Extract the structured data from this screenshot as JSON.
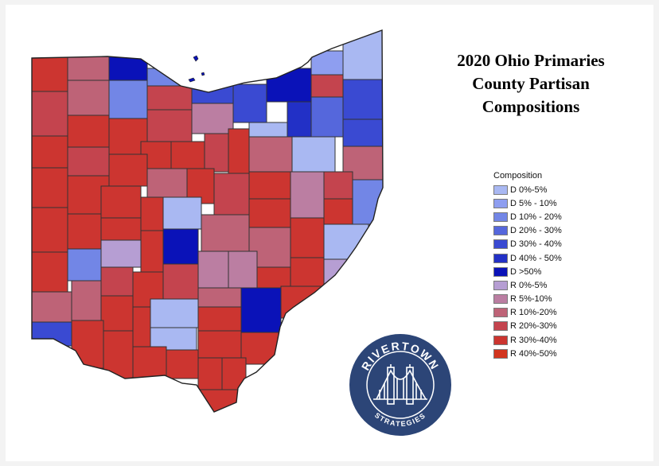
{
  "title_lines": [
    "2020 Ohio Primaries",
    "County Partisan",
    "Compositions"
  ],
  "legend": {
    "heading": "Composition",
    "items": [
      {
        "label": "D 0%-5%",
        "color": "#a9b8f2"
      },
      {
        "label": "D 5% - 10%",
        "color": "#8e9ef0"
      },
      {
        "label": "D 10% - 20%",
        "color": "#7286e6"
      },
      {
        "label": "D 20% - 30%",
        "color": "#5567dc"
      },
      {
        "label": "D 30% - 40%",
        "color": "#3a4ad2"
      },
      {
        "label": "D 40% - 50%",
        "color": "#2230c6"
      },
      {
        "label": "D >50%",
        "color": "#0a12b8"
      },
      {
        "label": "R 0%-5%",
        "color": "#b69ed3"
      },
      {
        "label": "R 5%-10%",
        "color": "#bb7ea2"
      },
      {
        "label": "R 10%-20%",
        "color": "#be6377"
      },
      {
        "label": "R 20%-30%",
        "color": "#c4444e"
      },
      {
        "label": "R 30%-40%",
        "color": "#cc3530"
      },
      {
        "label": "R 40%-50%",
        "color": "#d2341e"
      }
    ]
  },
  "logo": {
    "top_text": "RIVERTOWN",
    "bottom_text": "STRATEGIES",
    "color": "#2c4577"
  }
}
